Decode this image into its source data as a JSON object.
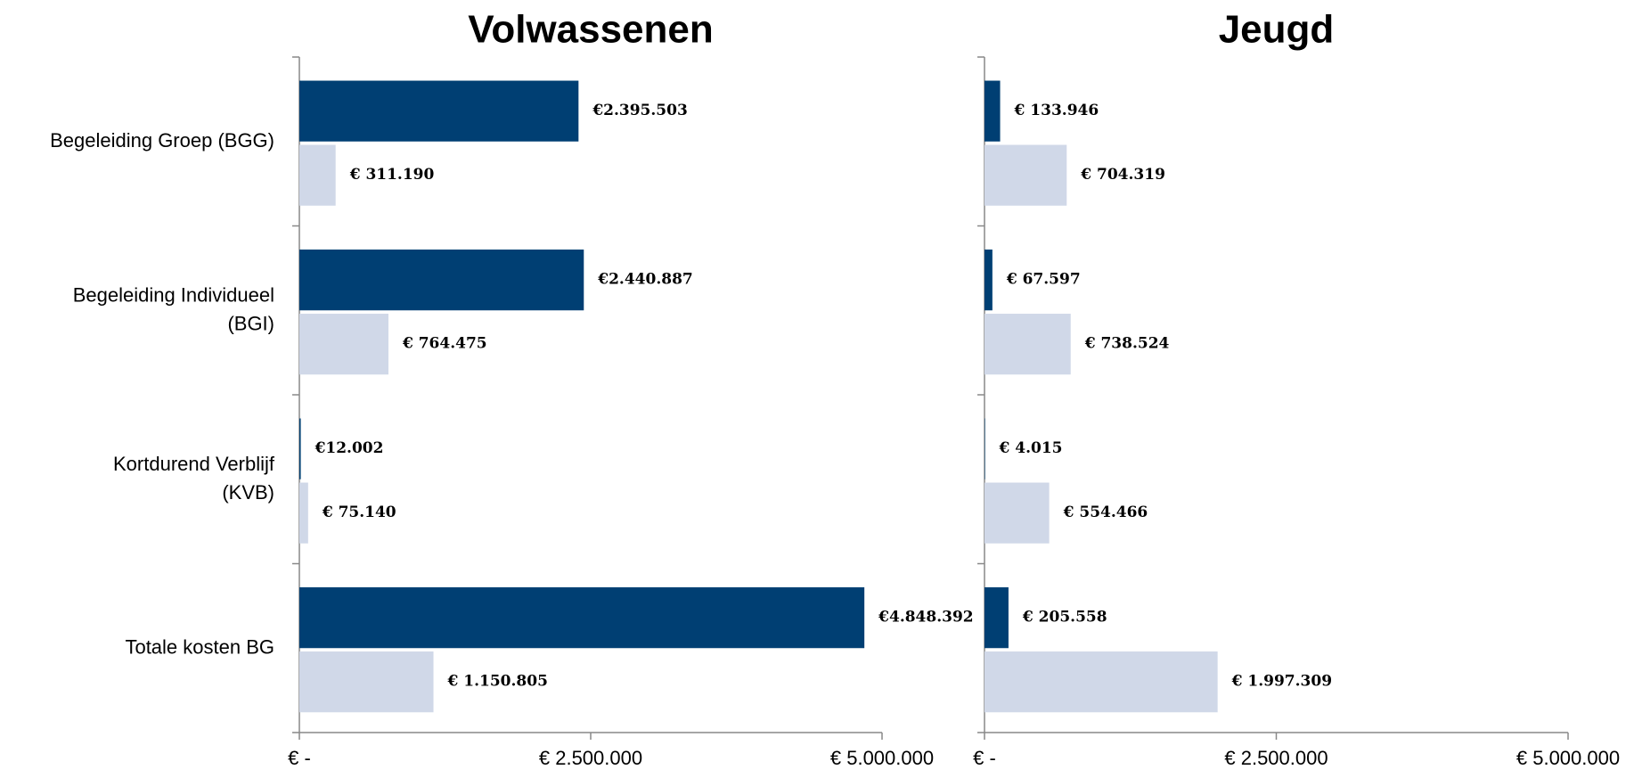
{
  "chart_data": [
    {
      "type": "bar",
      "orientation": "horizontal",
      "title": "Volwassenen",
      "categories": [
        "Begeleiding Groep (BGG)",
        "Begeleiding Individueel\n(BGI)",
        "Kortdurend Verblijf\n(KVB)",
        "Totale kosten BG"
      ],
      "series": [
        {
          "color": "#003f73",
          "values": [
            2395503,
            2440887,
            12002,
            4848392
          ],
          "value_labels": [
            "€2.395.503",
            "€2.440.887",
            "€12.002",
            "€4.848.392"
          ]
        },
        {
          "color": "#d0d8e8",
          "values": [
            311190,
            764475,
            75140,
            1150805
          ],
          "value_labels": [
            "€ 311.190",
            "€ 764.475",
            "€ 75.140",
            "€ 1.150.805"
          ]
        }
      ],
      "xlim": [
        0,
        5000000
      ],
      "xticks": [
        {
          "value": 0,
          "label": "€ -"
        },
        {
          "value": 2500000,
          "label": "€ 2.500.000"
        },
        {
          "value": 5000000,
          "label": "€ 5.000.000"
        }
      ]
    },
    {
      "type": "bar",
      "orientation": "horizontal",
      "title": "Jeugd",
      "series": [
        {
          "color": "#003f73",
          "values": [
            133946,
            67597,
            4015,
            205558
          ],
          "value_labels": [
            "€ 133.946",
            "€ 67.597",
            "€ 4.015",
            "€ 205.558"
          ]
        },
        {
          "color": "#d0d8e8",
          "values": [
            704319,
            738524,
            554466,
            1997309
          ],
          "value_labels": [
            "€ 704.319",
            "€ 738.524",
            "€ 554.466",
            "€ 1.997.309"
          ]
        }
      ],
      "xlim": [
        0,
        5000000
      ],
      "xticks": [
        {
          "value": 0,
          "label": "€ -"
        },
        {
          "value": 2500000,
          "label": "€ 2.500.000"
        },
        {
          "value": 5000000,
          "label": "€ 5.000.000"
        }
      ]
    }
  ]
}
